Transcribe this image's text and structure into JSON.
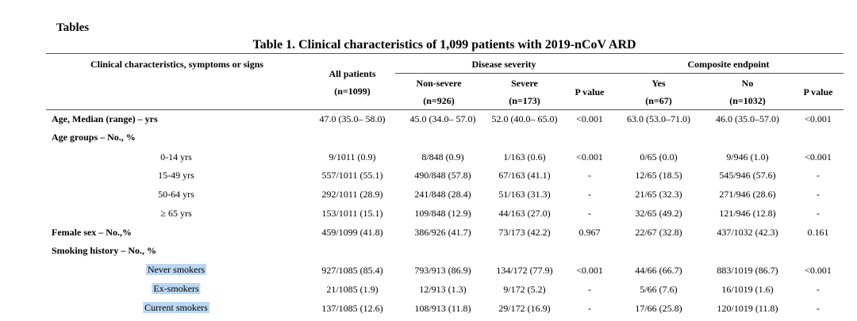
{
  "doc": {
    "heading": "Tables",
    "title": "Table 1. Clinical characteristics of 1,099 patients with 2019-nCoV ARD"
  },
  "table": {
    "headers": {
      "col0": "Clinical characteristics, symptoms or signs",
      "all_patients_line1": "All patients",
      "all_patients_line2": "(n=1099)",
      "group_disease_severity": "Disease severity",
      "group_composite_endpoint": "Composite endpoint",
      "non_severe_line1": "Non-severe",
      "non_severe_line2": "(n=926)",
      "severe_line1": "Severe",
      "severe_line2": "(n=173)",
      "p_value_1": "P value",
      "yes_line1": "Yes",
      "yes_line2": "(n=67)",
      "no_line1": "No",
      "no_line2": "(n=1032)",
      "p_value_2": "P value"
    },
    "rows": [
      {
        "kind": "main",
        "label": "Age, Median (range) – yrs",
        "cells": [
          "47.0 (35.0– 58.0)",
          "45.0 (34.0– 57.0)",
          "52.0 (40.0– 65.0)",
          "<0.001",
          "63.0 (53.0–71.0)",
          "46.0 (35.0–57.0)",
          "<0.001"
        ]
      },
      {
        "kind": "section",
        "label": "Age groups – No., %",
        "cells": []
      },
      {
        "kind": "sub",
        "label": "0-14 yrs",
        "cells": [
          "9/1011 (0.9)",
          "8/848 (0.9)",
          "1/163 (0.6)",
          "<0.001",
          "0/65 (0.0)",
          "9/946 (1.0)",
          "<0.001"
        ]
      },
      {
        "kind": "sub",
        "label": "15-49 yrs",
        "cells": [
          "557/1011 (55.1)",
          "490/848 (57.8)",
          "67/163 (41.1)",
          "-",
          "12/65 (18.5)",
          "545/946 (57.6)",
          "-"
        ]
      },
      {
        "kind": "sub",
        "label": "50-64 yrs",
        "cells": [
          "292/1011 (28.9)",
          "241/848 (28.4)",
          "51/163 (31.3)",
          "-",
          "21/65 (32.3)",
          "271/946 (28.6)",
          "-"
        ]
      },
      {
        "kind": "sub",
        "label": "≥ 65 yrs",
        "cells": [
          "153/1011 (15.1)",
          "109/848 (12.9)",
          "44/163 (27.0)",
          "-",
          "32/65 (49.2)",
          "121/946 (12.8)",
          "-"
        ]
      },
      {
        "kind": "main",
        "label": "Female sex – No.,%",
        "cells": [
          "459/1099 (41.8)",
          "386/926 (41.7)",
          "73/173 (42.2)",
          "0.967",
          "22/67 (32.8)",
          "437/1032 (42.3)",
          "0.161"
        ]
      },
      {
        "kind": "section",
        "label": "Smoking history – No., %",
        "cells": []
      },
      {
        "kind": "sub-hl",
        "label": "Never smokers",
        "cells": [
          "927/1085 (85.4)",
          "793/913 (86.9)",
          "134/172 (77.9)",
          "<0.001",
          "44/66 (66.7)",
          "883/1019 (86.7)",
          "<0.001"
        ]
      },
      {
        "kind": "sub-hl",
        "label": "Ex-smokers",
        "cells": [
          "21/1085 (1.9)",
          "12/913 (1.3)",
          "9/172 (5.2)",
          "-",
          "5/66 (7.6)",
          "16/1019 (1.6)",
          "-"
        ]
      },
      {
        "kind": "sub-hl",
        "label": "Current smokers",
        "cells": [
          "137/1085 (12.6)",
          "108/913 (11.8)",
          "29/172 (16.9)",
          "-",
          "17/66 (25.8)",
          "120/1019 (11.8)",
          "-"
        ]
      }
    ]
  }
}
